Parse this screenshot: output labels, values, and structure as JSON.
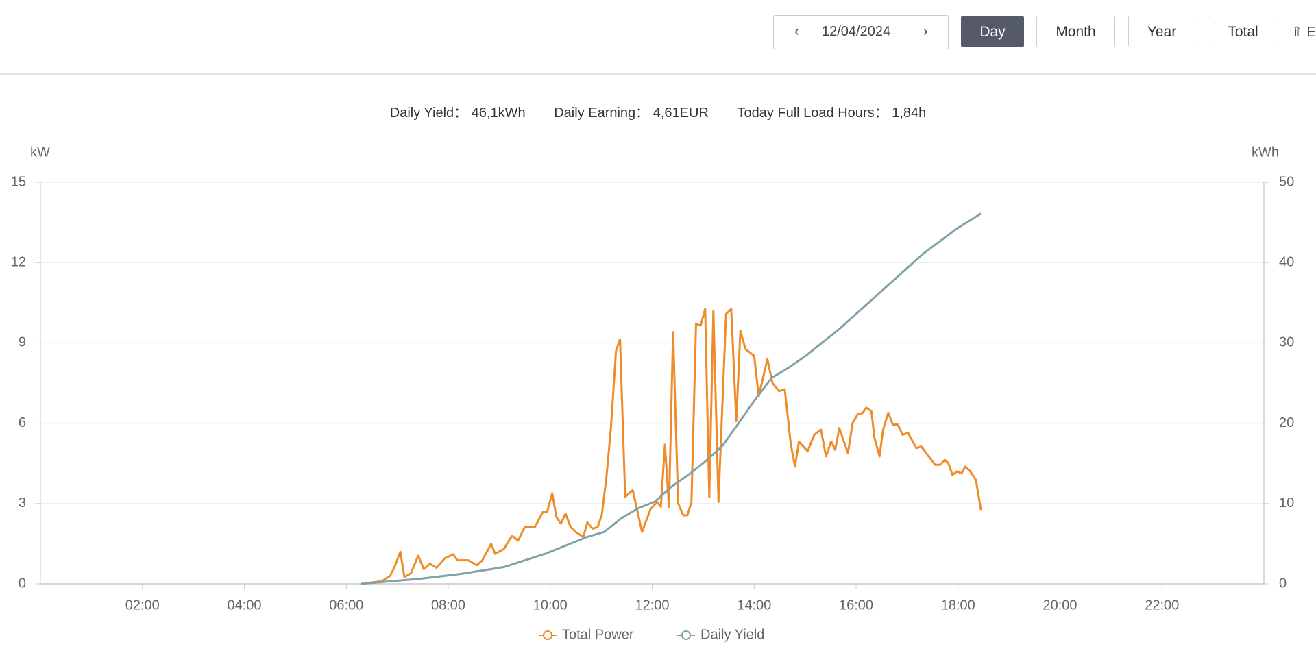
{
  "toolbar": {
    "date": "12/04/2024",
    "buttons": [
      "Day",
      "Month",
      "Year",
      "Total"
    ],
    "export": "E"
  },
  "summary": [
    {
      "label": "Daily Yield：",
      "value": "46,1kWh"
    },
    {
      "label": "Daily Earning：",
      "value": "4,61EUR"
    },
    {
      "label": "Today Full Load Hours：",
      "value": "1,84h"
    }
  ],
  "chart_data": {
    "type": "line",
    "y_label": "kW",
    "y2_label": "kWh",
    "xlim": [
      0,
      24
    ],
    "xticks": [
      {
        "value": 2,
        "label": "02:00"
      },
      {
        "value": 4,
        "label": "04:00"
      },
      {
        "value": 6,
        "label": "06:00"
      },
      {
        "value": 8,
        "label": "08:00"
      },
      {
        "value": 10,
        "label": "10:00"
      },
      {
        "value": 12,
        "label": "12:00"
      },
      {
        "value": 14,
        "label": "14:00"
      },
      {
        "value": 16,
        "label": "16:00"
      },
      {
        "value": 18,
        "label": "18:00"
      },
      {
        "value": 20,
        "label": "20:00"
      },
      {
        "value": 22,
        "label": "22:00"
      }
    ],
    "ylim": [
      0,
      15
    ],
    "yticks": [
      0,
      3,
      6,
      9,
      12,
      15
    ],
    "y2lim": [
      0,
      50
    ],
    "y2ticks": [
      0,
      10,
      20,
      30,
      40,
      50
    ],
    "grid": true,
    "series": [
      {
        "name": "Total Power",
        "color": "#ee8c2a",
        "x": [
          6.29,
          6.53,
          6.7,
          6.86,
          6.95,
          7.06,
          7.14,
          7.27,
          7.41,
          7.52,
          7.64,
          7.77,
          7.93,
          8.1,
          8.18,
          8.39,
          8.56,
          8.67,
          8.84,
          8.92,
          9.09,
          9.25,
          9.37,
          9.5,
          9.7,
          9.86,
          9.94,
          10.04,
          10.12,
          10.21,
          10.3,
          10.4,
          10.5,
          10.65,
          10.73,
          10.83,
          10.93,
          11.01,
          11.1,
          11.19,
          11.29,
          11.37,
          11.47,
          11.62,
          11.8,
          11.97,
          12.1,
          12.17,
          12.25,
          12.33,
          12.41,
          12.51,
          12.61,
          12.69,
          12.77,
          12.86,
          12.95,
          13.04,
          13.12,
          13.2,
          13.3,
          13.45,
          13.55,
          13.65,
          13.73,
          13.83,
          14.0,
          14.09,
          14.26,
          14.36,
          14.49,
          14.6,
          14.72,
          14.8,
          14.88,
          15.05,
          15.18,
          15.31,
          15.41,
          15.51,
          15.59,
          15.67,
          15.84,
          15.93,
          16.03,
          16.13,
          16.2,
          16.3,
          16.36,
          16.46,
          16.53,
          16.63,
          16.72,
          16.82,
          16.91,
          17.02,
          17.18,
          17.28,
          17.4,
          17.55,
          17.65,
          17.74,
          17.81,
          17.89,
          17.98,
          18.07,
          18.14,
          18.24,
          18.35,
          18.45
        ],
        "values": [
          0,
          0.06,
          0.1,
          0.3,
          0.65,
          1.2,
          0.25,
          0.4,
          1.05,
          0.55,
          0.75,
          0.6,
          0.95,
          1.1,
          0.88,
          0.88,
          0.7,
          0.88,
          1.5,
          1.12,
          1.3,
          1.8,
          1.62,
          2.12,
          2.12,
          2.7,
          2.7,
          3.38,
          2.5,
          2.25,
          2.62,
          2.12,
          1.94,
          1.75,
          2.3,
          2.06,
          2.12,
          2.56,
          3.94,
          5.82,
          8.7,
          9.14,
          3.25,
          3.5,
          1.94,
          2.8,
          3.06,
          2.88,
          5.2,
          2.88,
          9.4,
          3.0,
          2.56,
          2.56,
          3.06,
          9.7,
          9.65,
          10.27,
          3.25,
          10.2,
          3.06,
          10.08,
          10.27,
          6.08,
          9.46,
          8.77,
          8.52,
          7.0,
          8.4,
          7.5,
          7.2,
          7.27,
          5.2,
          4.38,
          5.32,
          4.95,
          5.57,
          5.76,
          4.76,
          5.32,
          5.01,
          5.82,
          4.88,
          6.0,
          6.33,
          6.39,
          6.58,
          6.45,
          5.45,
          4.76,
          5.76,
          6.39,
          5.95,
          5.95,
          5.57,
          5.64,
          5.07,
          5.13,
          4.82,
          4.45,
          4.45,
          4.63,
          4.51,
          4.07,
          4.2,
          4.13,
          4.38,
          4.2,
          3.88,
          2.76
        ]
      },
      {
        "name": "Daily Yield",
        "color": "#7fa2a6",
        "axis": "y2",
        "x": [
          6.29,
          7.44,
          8.26,
          9.09,
          9.91,
          10.73,
          11.06,
          11.39,
          11.72,
          12.05,
          12.38,
          12.71,
          13.04,
          13.37,
          13.7,
          14.02,
          14.35,
          14.68,
          15.01,
          15.67,
          16.33,
          16.99,
          17.32,
          17.98,
          18.45
        ],
        "values": [
          0,
          0.63,
          1.25,
          2.09,
          3.76,
          5.85,
          6.47,
          8.14,
          9.39,
          10.23,
          12.11,
          13.57,
          15.24,
          17.12,
          20.04,
          22.96,
          25.68,
          26.93,
          28.39,
          31.73,
          35.49,
          39.25,
          41.13,
          44.26,
          46.1
        ]
      }
    ]
  }
}
